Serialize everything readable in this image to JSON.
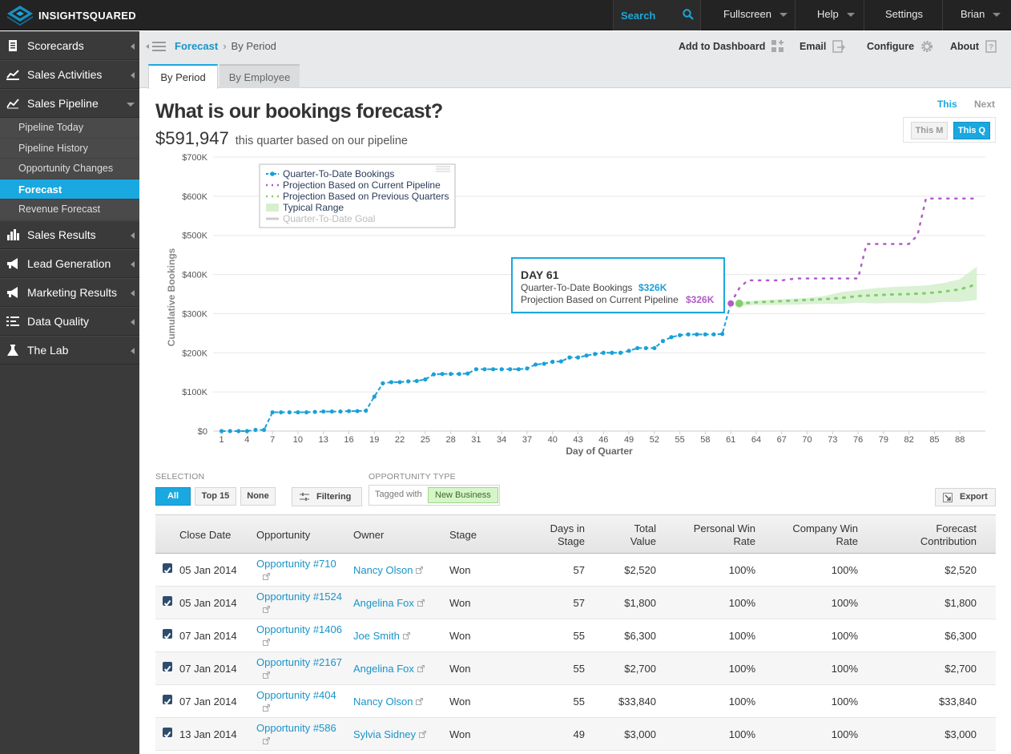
{
  "topbar": {
    "brand": "INSIGHTSQUARED",
    "search_label": "Search",
    "nav": [
      {
        "label": "Fullscreen"
      },
      {
        "label": "Help"
      },
      {
        "label": "Settings"
      },
      {
        "label": "Brian"
      }
    ]
  },
  "sidebar": {
    "items": [
      {
        "label": "Scorecards",
        "icon": "scorecard-icon"
      },
      {
        "label": "Sales Activities",
        "icon": "activities-icon"
      },
      {
        "label": "Sales Pipeline",
        "icon": "pipeline-icon",
        "expanded": true
      },
      {
        "label": "Sales Results",
        "icon": "bar-chart-icon"
      },
      {
        "label": "Lead Generation",
        "icon": "megaphone-icon"
      },
      {
        "label": "Marketing Results",
        "icon": "megaphone-icon"
      },
      {
        "label": "Data Quality",
        "icon": "checklist-icon"
      },
      {
        "label": "The Lab",
        "icon": "flask-icon"
      }
    ],
    "subitems": [
      {
        "label": "Pipeline Today"
      },
      {
        "label": "Pipeline History"
      },
      {
        "label": "Opportunity Changes"
      },
      {
        "label": "Forecast",
        "active": true
      },
      {
        "label": "Revenue Forecast"
      }
    ]
  },
  "breadcrumb": {
    "section": "Forecast",
    "current": "By Period"
  },
  "header_actions": {
    "dashboard": "Add to Dashboard",
    "email": "Email",
    "configure": "Configure",
    "about": "About"
  },
  "tabs": [
    {
      "label": "By Period",
      "active": true
    },
    {
      "label": "By Employee"
    }
  ],
  "main": {
    "title": "What is our bookings forecast?",
    "amount": "$591,947",
    "amount_caption": "this quarter based on our pipeline",
    "period_this": "This",
    "period_next": "Next",
    "range_month": "This M",
    "range_quarter": "This Q"
  },
  "colors": {
    "accent": "#1aa8e0",
    "qtd": "#1aa0d8",
    "pipeline": "#b05cc6",
    "previous": "#7fcf6a",
    "range": "#d6f0cf",
    "goal": "#cccccc"
  },
  "chart_data": {
    "type": "line",
    "xlabel": "Day of Quarter",
    "ylabel": "Cumulative Bookings",
    "xlim": [
      0,
      91
    ],
    "ylim": [
      0,
      700000
    ],
    "x_ticks": [
      1,
      4,
      7,
      10,
      13,
      16,
      19,
      22,
      25,
      28,
      31,
      34,
      37,
      40,
      43,
      46,
      49,
      52,
      55,
      58,
      61,
      64,
      67,
      70,
      73,
      76,
      79,
      82,
      85,
      88
    ],
    "y_ticks": [
      "$0",
      "$100K",
      "$200K",
      "$300K",
      "$400K",
      "$500K",
      "$600K",
      "$700K"
    ],
    "y_tick_values": [
      0,
      100000,
      200000,
      300000,
      400000,
      500000,
      600000,
      700000
    ],
    "legend": {
      "position": "top-left",
      "entries": [
        "Quarter-To-Date Bookings",
        "Projection Based on Current Pipeline",
        "Projection Based on Previous Quarters",
        "Typical Range",
        "Quarter-To-Date Goal"
      ]
    },
    "series": [
      {
        "name": "Quarter-To-Date Bookings",
        "x": [
          1,
          2,
          3,
          4,
          5,
          6,
          7,
          8,
          9,
          10,
          11,
          12,
          13,
          14,
          15,
          16,
          17,
          18,
          19,
          20,
          21,
          22,
          23,
          24,
          25,
          26,
          27,
          28,
          29,
          30,
          31,
          32,
          33,
          34,
          35,
          36,
          37,
          38,
          39,
          40,
          41,
          42,
          43,
          44,
          45,
          46,
          47,
          48,
          49,
          50,
          51,
          52,
          53,
          54,
          55,
          56,
          57,
          58,
          59,
          60,
          61
        ],
        "y": [
          0,
          0,
          0,
          0,
          3000,
          3000,
          48000,
          48000,
          48000,
          48000,
          48000,
          49000,
          50000,
          50000,
          50000,
          51000,
          51000,
          52000,
          88000,
          122000,
          125000,
          125000,
          127000,
          128000,
          132000,
          145000,
          146000,
          146000,
          146000,
          147000,
          158000,
          158000,
          158000,
          158000,
          158000,
          158000,
          160000,
          170000,
          172000,
          177000,
          178000,
          188000,
          188000,
          193000,
          197000,
          200000,
          200000,
          200000,
          205000,
          212000,
          212000,
          212000,
          230000,
          240000,
          245000,
          247000,
          247000,
          247000,
          247000,
          248000,
          326000
        ]
      },
      {
        "name": "Projection Based on Current Pipeline",
        "x": [
          61,
          62,
          63,
          64,
          65,
          66,
          67,
          68,
          69,
          70,
          71,
          72,
          73,
          74,
          75,
          76,
          77,
          78,
          79,
          80,
          81,
          82,
          83,
          84,
          85,
          86,
          87,
          88,
          89,
          90
        ],
        "y": [
          326000,
          365000,
          385000,
          385000,
          385000,
          385000,
          385000,
          388000,
          390000,
          390000,
          390000,
          390000,
          390000,
          390000,
          390000,
          390000,
          478000,
          478000,
          478000,
          478000,
          478000,
          478000,
          500000,
          594000,
          594000,
          594000,
          594000,
          594000,
          594000,
          594000
        ]
      },
      {
        "name": "Projection Based on Previous Quarters",
        "x": [
          62,
          64,
          66,
          68,
          70,
          72,
          74,
          76,
          78,
          80,
          82,
          84,
          86,
          88,
          90
        ],
        "y": [
          326000,
          329000,
          331000,
          333000,
          335000,
          337000,
          340000,
          345000,
          347000,
          349000,
          350000,
          352000,
          356000,
          362000,
          375000
        ]
      }
    ],
    "typical_range": {
      "x": [
        62,
        64,
        66,
        68,
        70,
        72,
        74,
        76,
        78,
        80,
        82,
        84,
        86,
        88,
        90
      ],
      "low": [
        320000,
        322000,
        322000,
        323000,
        324000,
        325000,
        325000,
        328000,
        326000,
        327000,
        327000,
        326000,
        330000,
        330000,
        335000
      ],
      "high": [
        330000,
        333000,
        336000,
        338000,
        340000,
        345000,
        355000,
        360000,
        365000,
        368000,
        370000,
        372000,
        378000,
        388000,
        420000
      ]
    },
    "tooltip": {
      "title": "DAY 61",
      "lines": [
        {
          "label": "Quarter-To-Date Bookings",
          "value": "$326K"
        },
        {
          "label": "Projection Based on Current Pipeline",
          "value": "$326K"
        }
      ]
    }
  },
  "controls": {
    "selection_caption": "SELECTION",
    "sel_all": "All",
    "sel_top": "Top 15",
    "sel_none": "None",
    "filtering": "Filtering",
    "type_caption": "OPPORTUNITY TYPE",
    "tagged_with": "Tagged with",
    "tag": "New Business",
    "export": "Export"
  },
  "table": {
    "columns": {
      "close_date": "Close Date",
      "opportunity": "Opportunity",
      "owner": "Owner",
      "stage": "Stage",
      "days_1": "Days in",
      "days_2": "Stage",
      "total_1": "Total",
      "total_2": "Value",
      "pwr_1": "Personal Win",
      "pwr_2": "Rate",
      "cwr_1": "Company Win",
      "cwr_2": "Rate",
      "fc_1": "Forecast",
      "fc_2": "Contribution"
    },
    "rows": [
      {
        "date": "05 Jan 2014",
        "opp": "Opportunity #710",
        "owner": "Nancy Olson",
        "stage": "Won",
        "days": "57",
        "total": "$2,520",
        "pwr": "100%",
        "cwr": "100%",
        "fc": "$2,520"
      },
      {
        "date": "05 Jan 2014",
        "opp": "Opportunity #1524",
        "owner": "Angelina Fox",
        "stage": "Won",
        "days": "57",
        "total": "$1,800",
        "pwr": "100%",
        "cwr": "100%",
        "fc": "$1,800"
      },
      {
        "date": "07 Jan 2014",
        "opp": "Opportunity #1406",
        "owner": "Joe Smith",
        "stage": "Won",
        "days": "55",
        "total": "$6,300",
        "pwr": "100%",
        "cwr": "100%",
        "fc": "$6,300"
      },
      {
        "date": "07 Jan 2014",
        "opp": "Opportunity #2167",
        "owner": "Angelina Fox",
        "stage": "Won",
        "days": "55",
        "total": "$2,700",
        "pwr": "100%",
        "cwr": "100%",
        "fc": "$2,700"
      },
      {
        "date": "07 Jan 2014",
        "opp": "Opportunity #404",
        "owner": "Nancy Olson",
        "stage": "Won",
        "days": "55",
        "total": "$33,840",
        "pwr": "100%",
        "cwr": "100%",
        "fc": "$33,840"
      },
      {
        "date": "13 Jan 2014",
        "opp": "Opportunity #586",
        "owner": "Sylvia Sidney",
        "stage": "Won",
        "days": "49",
        "total": "$3,000",
        "pwr": "100%",
        "cwr": "100%",
        "fc": "$3,000"
      }
    ]
  }
}
